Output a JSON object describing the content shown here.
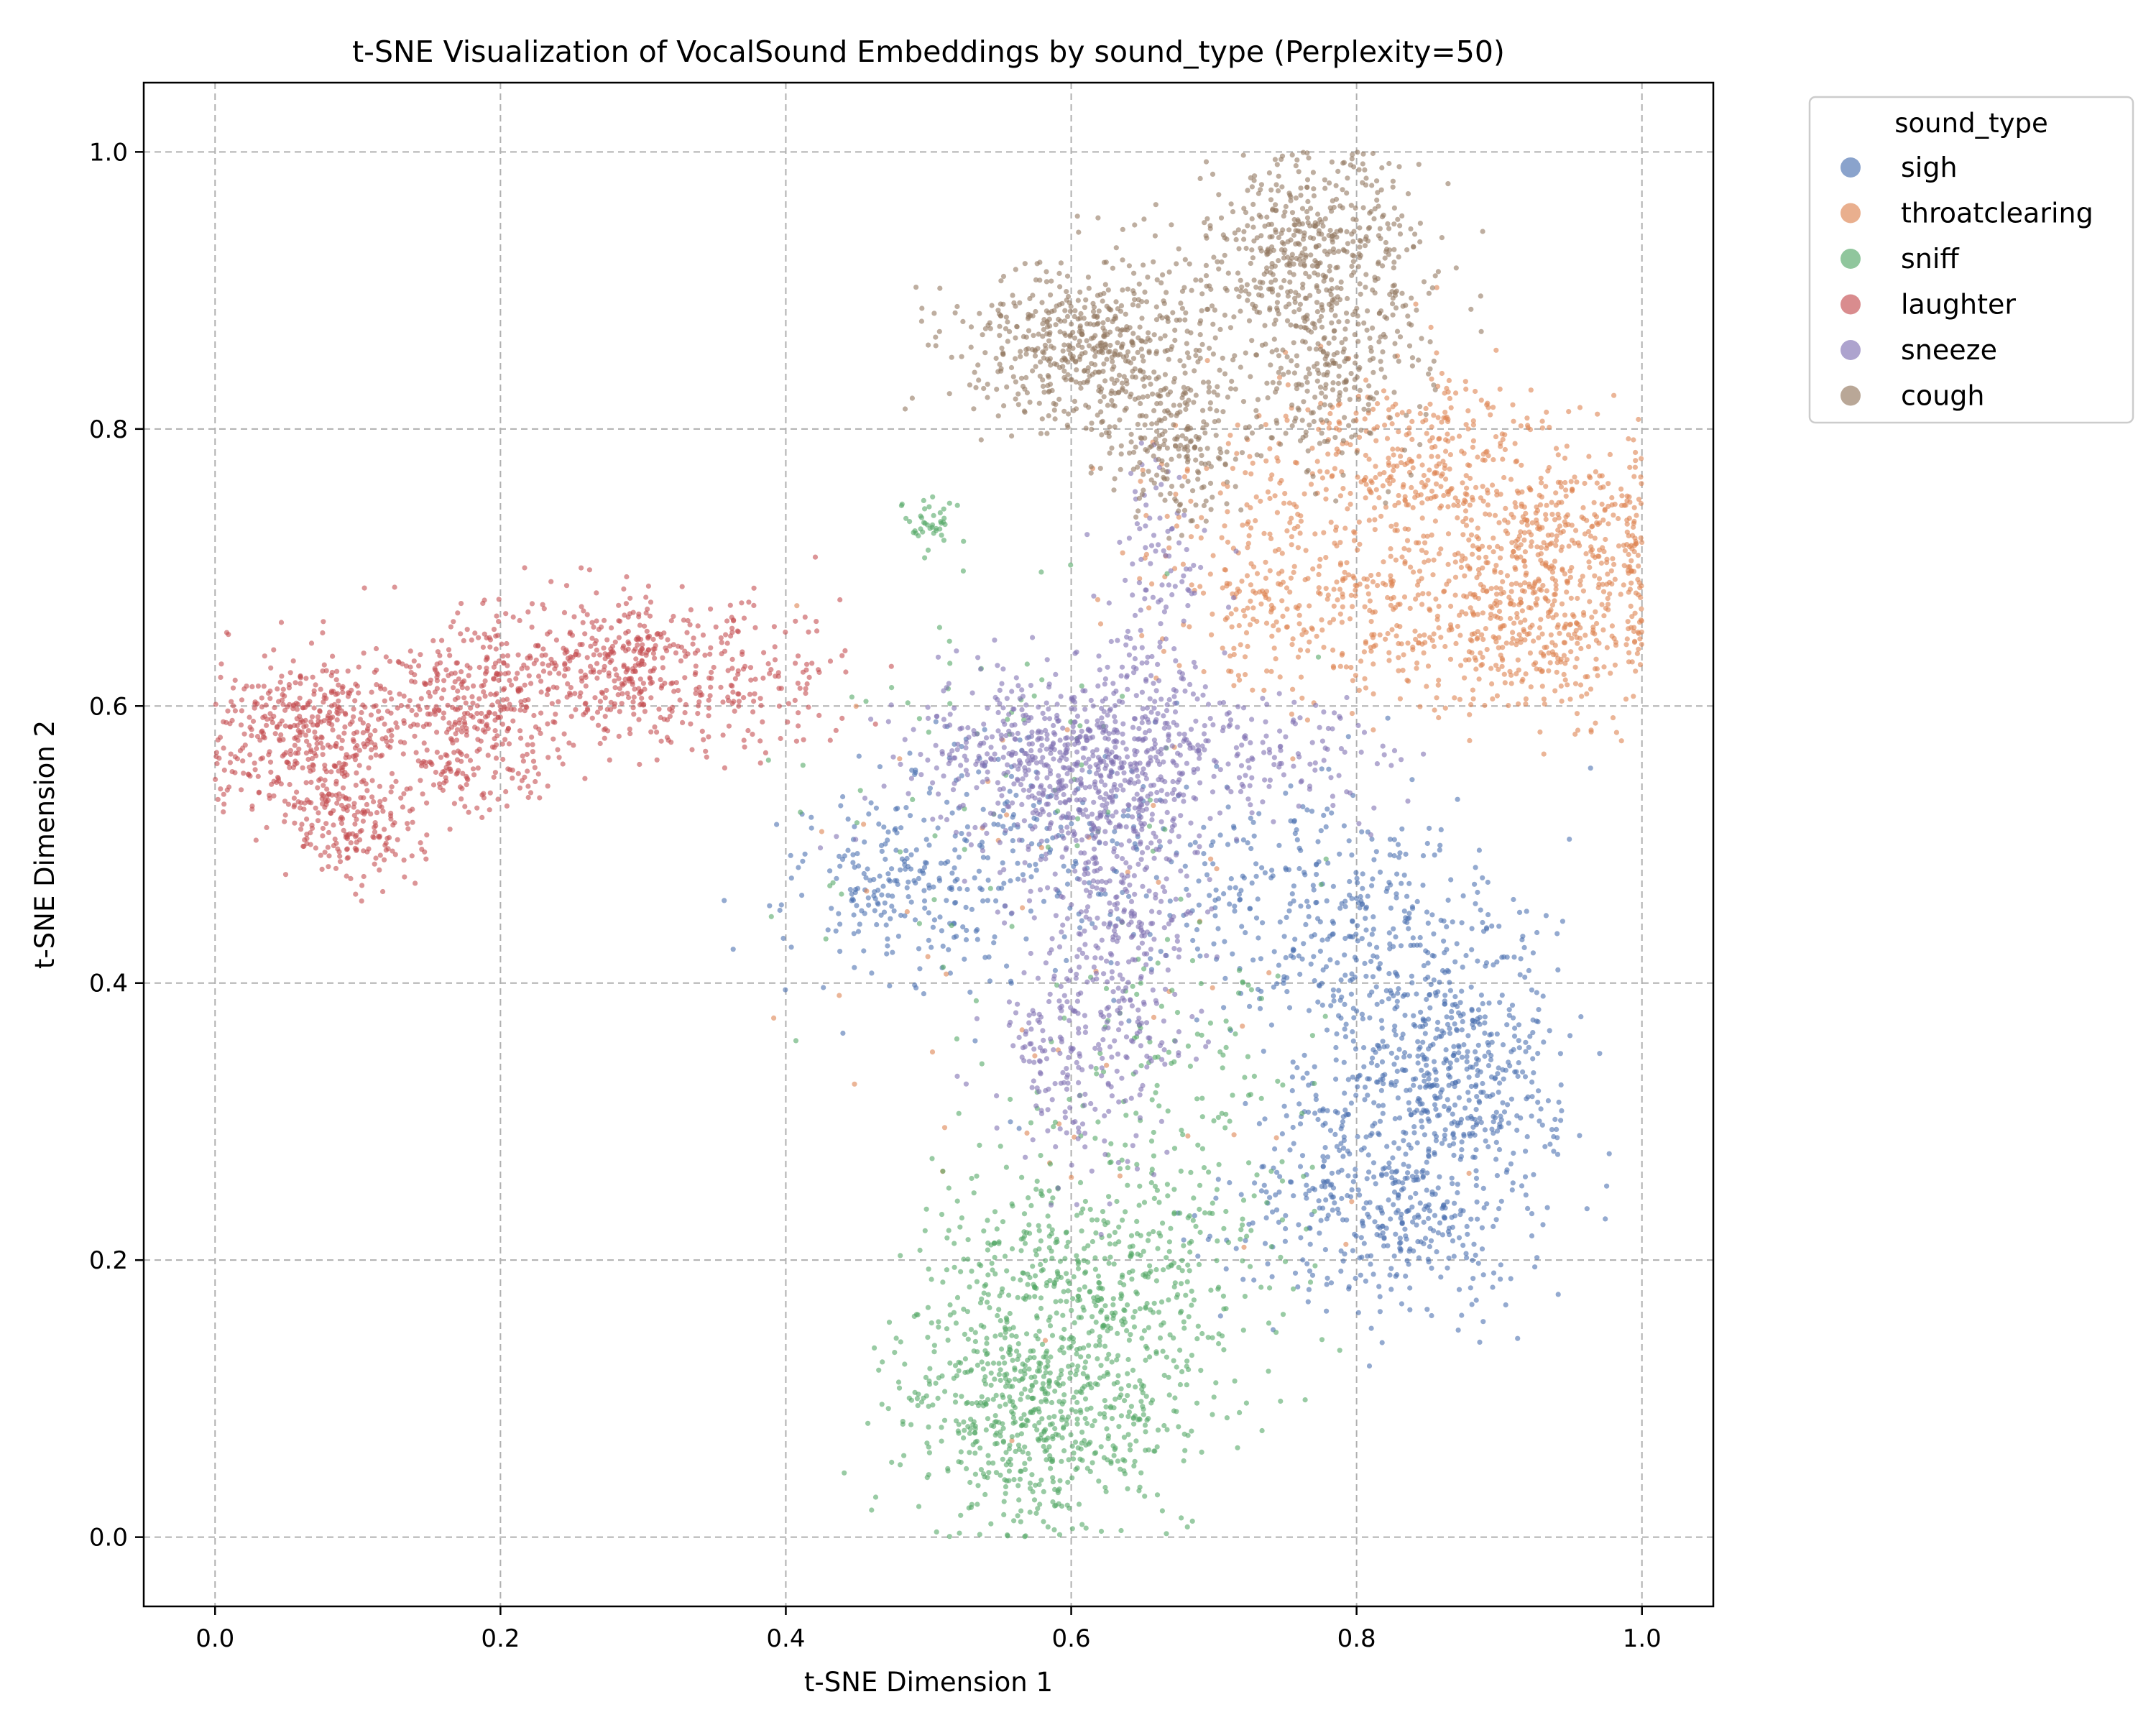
{
  "chart_data": {
    "type": "scatter",
    "title": "t-SNE Visualization of VocalSound Embeddings by sound_type (Perplexity=50)",
    "xlabel": "t-SNE Dimension 1",
    "ylabel": "t-SNE Dimension 2",
    "xlim": [
      -0.05,
      1.05
    ],
    "ylim": [
      -0.05,
      1.05
    ],
    "xticks": [
      0.0,
      0.2,
      0.4,
      0.6,
      0.8,
      1.0
    ],
    "yticks": [
      0.0,
      0.2,
      0.4,
      0.6,
      0.8,
      1.0
    ],
    "xtick_labels": [
      "0.0",
      "0.2",
      "0.4",
      "0.6",
      "0.8",
      "1.0"
    ],
    "ytick_labels": [
      "0.0",
      "0.2",
      "0.4",
      "0.6",
      "0.8",
      "1.0"
    ],
    "grid": true,
    "legend": {
      "title": "sound_type",
      "placement": "outside-top-right"
    },
    "series": [
      {
        "name": "sigh",
        "color": "#4c72b0",
        "clusters": [
          {
            "cx": 0.84,
            "cy": 0.36,
            "sx": 0.05,
            "sy": 0.07,
            "n": 520
          },
          {
            "cx": 0.82,
            "cy": 0.24,
            "sx": 0.05,
            "sy": 0.04,
            "n": 420
          },
          {
            "cx": 0.88,
            "cy": 0.34,
            "sx": 0.025,
            "sy": 0.04,
            "n": 200
          },
          {
            "cx": 0.75,
            "cy": 0.47,
            "sx": 0.05,
            "sy": 0.04,
            "n": 220
          },
          {
            "cx": 0.48,
            "cy": 0.47,
            "sx": 0.04,
            "sy": 0.04,
            "n": 220
          },
          {
            "cx": 0.58,
            "cy": 0.5,
            "sx": 0.06,
            "sy": 0.05,
            "n": 180
          }
        ]
      },
      {
        "name": "throatclearing",
        "color": "#dd8452",
        "clusters": [
          {
            "cx": 0.93,
            "cy": 0.66,
            "sx": 0.04,
            "sy": 0.035,
            "n": 380
          },
          {
            "cx": 0.8,
            "cy": 0.67,
            "sx": 0.07,
            "sy": 0.035,
            "n": 380
          },
          {
            "cx": 0.85,
            "cy": 0.78,
            "sx": 0.04,
            "sy": 0.035,
            "n": 300
          },
          {
            "cx": 0.95,
            "cy": 0.73,
            "sx": 0.04,
            "sy": 0.03,
            "n": 280
          },
          {
            "cx": 0.74,
            "cy": 0.74,
            "sx": 0.04,
            "sy": 0.04,
            "n": 140
          },
          {
            "cx": 0.62,
            "cy": 0.4,
            "sx": 0.1,
            "sy": 0.15,
            "n": 60
          }
        ]
      },
      {
        "name": "sniff",
        "color": "#55a868",
        "clusters": [
          {
            "cx": 0.58,
            "cy": 0.08,
            "sx": 0.05,
            "sy": 0.04,
            "n": 520
          },
          {
            "cx": 0.6,
            "cy": 0.17,
            "sx": 0.06,
            "sy": 0.05,
            "n": 520
          },
          {
            "cx": 0.66,
            "cy": 0.22,
            "sx": 0.05,
            "sy": 0.05,
            "n": 160
          },
          {
            "cx": 0.68,
            "cy": 0.35,
            "sx": 0.04,
            "sy": 0.04,
            "n": 90
          },
          {
            "cx": 0.5,
            "cy": 0.73,
            "sx": 0.01,
            "sy": 0.01,
            "n": 40
          },
          {
            "cx": 0.55,
            "cy": 0.55,
            "sx": 0.08,
            "sy": 0.1,
            "n": 80
          }
        ]
      },
      {
        "name": "laughter",
        "color": "#c44e52",
        "clusters": [
          {
            "cx": 0.07,
            "cy": 0.58,
            "sx": 0.035,
            "sy": 0.03,
            "n": 450
          },
          {
            "cx": 0.1,
            "cy": 0.51,
            "sx": 0.025,
            "sy": 0.02,
            "n": 160
          },
          {
            "cx": 0.18,
            "cy": 0.6,
            "sx": 0.035,
            "sy": 0.035,
            "n": 420
          },
          {
            "cx": 0.28,
            "cy": 0.63,
            "sx": 0.035,
            "sy": 0.025,
            "n": 320
          },
          {
            "cx": 0.37,
            "cy": 0.62,
            "sx": 0.04,
            "sy": 0.025,
            "n": 170
          }
        ]
      },
      {
        "name": "sneeze",
        "color": "#8172b3",
        "clusters": [
          {
            "cx": 0.58,
            "cy": 0.56,
            "sx": 0.05,
            "sy": 0.03,
            "n": 420
          },
          {
            "cx": 0.64,
            "cy": 0.57,
            "sx": 0.04,
            "sy": 0.04,
            "n": 300
          },
          {
            "cx": 0.63,
            "cy": 0.46,
            "sx": 0.03,
            "sy": 0.05,
            "n": 320
          },
          {
            "cx": 0.61,
            "cy": 0.35,
            "sx": 0.03,
            "sy": 0.04,
            "n": 220
          },
          {
            "cx": 0.74,
            "cy": 0.56,
            "sx": 0.04,
            "sy": 0.02,
            "n": 130
          },
          {
            "cx": 0.66,
            "cy": 0.7,
            "sx": 0.02,
            "sy": 0.04,
            "n": 90
          }
        ]
      },
      {
        "name": "cough",
        "color": "#937860",
        "clusters": [
          {
            "cx": 0.61,
            "cy": 0.86,
            "sx": 0.045,
            "sy": 0.03,
            "n": 560
          },
          {
            "cx": 0.67,
            "cy": 0.79,
            "sx": 0.025,
            "sy": 0.03,
            "n": 200
          },
          {
            "cx": 0.77,
            "cy": 0.93,
            "sx": 0.04,
            "sy": 0.035,
            "n": 500
          },
          {
            "cx": 0.78,
            "cy": 0.84,
            "sx": 0.035,
            "sy": 0.035,
            "n": 260
          }
        ]
      }
    ]
  }
}
